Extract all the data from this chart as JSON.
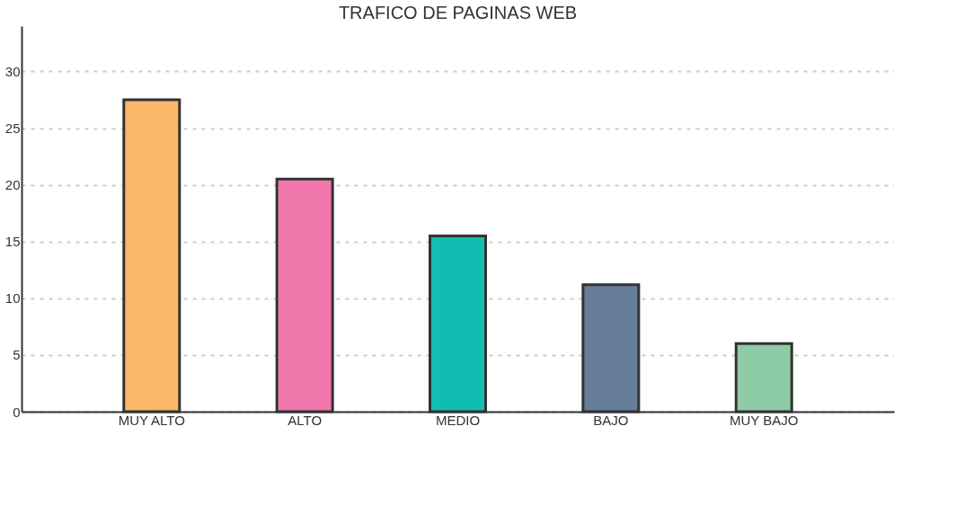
{
  "chart_data": {
    "type": "bar",
    "title": "TRAFICO DE PAGINAS WEB",
    "categories": [
      "MUY ALTO",
      "ALTO",
      "MEDIO",
      "BAJO",
      "MUY BAJO"
    ],
    "values": [
      27.5,
      20.5,
      15.5,
      11.2,
      6.0
    ],
    "colors": [
      "#fbb868",
      "#f178ad",
      "#12bcb0",
      "#677e9a",
      "#8dcca4"
    ],
    "ylim": [
      0,
      34
    ],
    "yticks": [
      0,
      5,
      10,
      15,
      20,
      25,
      30
    ],
    "grid": "y"
  }
}
